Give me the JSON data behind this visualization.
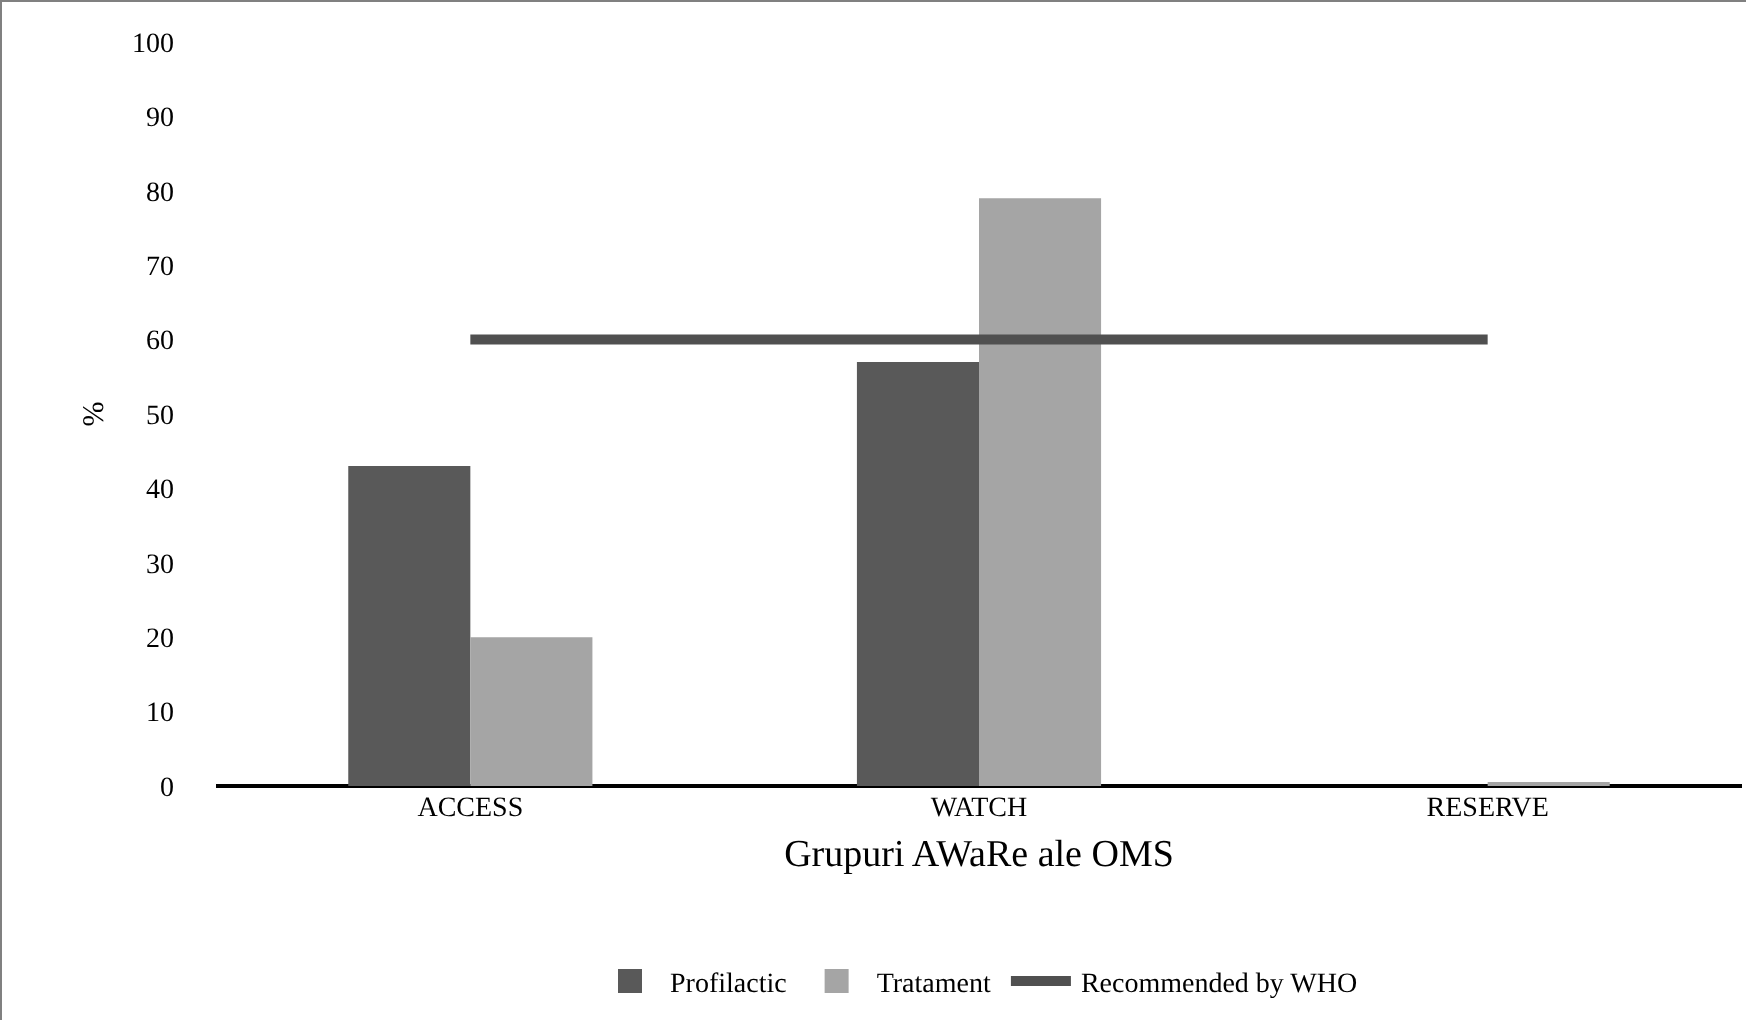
{
  "chart_data": {
    "type": "bar",
    "xlabel": "Grupuri AWaRe ale OMS",
    "ylabel": "%",
    "categories": [
      "ACCESS",
      "WATCH",
      "RESERVE"
    ],
    "series": [
      {
        "name": "Profilactic",
        "color": "#595959",
        "values": [
          43,
          57,
          0
        ]
      },
      {
        "name": "Tratament",
        "color": "#a5a5a5",
        "values": [
          20,
          79,
          0.3
        ]
      },
      {
        "name": "Recommended by WHO",
        "type": "line",
        "color": "#505050",
        "values": [
          60,
          60,
          60
        ]
      }
    ],
    "ylim": [
      0,
      100
    ],
    "yticks": [
      0,
      10,
      20,
      30,
      40,
      50,
      60,
      70,
      80,
      90,
      100
    ],
    "grid": false,
    "legend": "bottom"
  }
}
